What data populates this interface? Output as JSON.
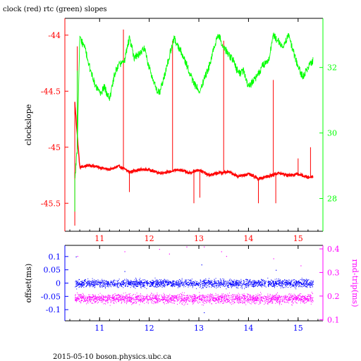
{
  "title": "clock (red) rtc (green) slopes",
  "footer": "2015-05-10 boson.physics.ubc.ca",
  "colors": {
    "axis_black": "#000000",
    "clock_red": "#ff0000",
    "rtc_green": "#00ff00",
    "offset_blue": "#0000ff",
    "rndtrip_magenta": "#ff00ff"
  },
  "chart_data": [
    {
      "type": "line",
      "title": "clock (red) rtc (green) slopes",
      "xlabel": "",
      "ylabel": "clockslope",
      "y2label": "",
      "xlim": [
        10.3,
        15.5
      ],
      "ylim": [
        -45.75,
        -43.85
      ],
      "y2lim": [
        27.0,
        33.5
      ],
      "xticks": [
        11,
        12,
        13,
        14,
        15
      ],
      "yticks": [
        -44,
        -44.5,
        -45,
        -45.5
      ],
      "ytick_labels": [
        "-44",
        "-44.5",
        "-45",
        "-45.5"
      ],
      "y2ticks": [
        28,
        30,
        32
      ],
      "y2tick_labels": [
        "28",
        "30",
        "32"
      ],
      "series": [
        {
          "name": "clock",
          "axis": "left",
          "color": "#ff0000",
          "x": [
            10.5,
            10.6,
            10.8,
            11.0,
            11.2,
            11.4,
            11.6,
            11.8,
            12.0,
            12.2,
            12.4,
            12.6,
            12.8,
            13.0,
            13.2,
            13.4,
            13.6,
            13.8,
            14.0,
            14.2,
            14.4,
            14.6,
            14.8,
            15.0,
            15.2,
            15.3
          ],
          "y": [
            -44.6,
            -45.18,
            -45.16,
            -45.18,
            -45.2,
            -45.17,
            -45.22,
            -45.2,
            -45.2,
            -45.23,
            -45.22,
            -45.2,
            -45.23,
            -45.2,
            -45.25,
            -45.23,
            -45.22,
            -45.26,
            -45.24,
            -45.28,
            -45.26,
            -45.23,
            -45.25,
            -45.24,
            -45.27,
            -45.26
          ],
          "spikes": [
            {
              "x": 10.5,
              "y": -45.7
            },
            {
              "x": 10.55,
              "y": -44.1
            },
            {
              "x": 11.48,
              "y": -43.95
            },
            {
              "x": 11.6,
              "y": -45.4
            },
            {
              "x": 12.47,
              "y": -44.05
            },
            {
              "x": 12.9,
              "y": -45.5
            },
            {
              "x": 13.02,
              "y": -45.45
            },
            {
              "x": 13.5,
              "y": -44.05
            },
            {
              "x": 14.2,
              "y": -45.5
            },
            {
              "x": 14.5,
              "y": -44.4
            },
            {
              "x": 14.55,
              "y": -45.5
            },
            {
              "x": 15.0,
              "y": -45.1
            },
            {
              "x": 15.25,
              "y": -45.0
            }
          ]
        },
        {
          "name": "rtc",
          "axis": "right",
          "color": "#00ff00",
          "x": [
            10.5,
            10.55,
            10.6,
            10.7,
            10.8,
            10.9,
            11.0,
            11.1,
            11.2,
            11.3,
            11.4,
            11.5,
            11.6,
            11.7,
            11.8,
            11.9,
            12.0,
            12.1,
            12.2,
            12.3,
            12.4,
            12.5,
            12.6,
            12.7,
            12.8,
            12.9,
            13.0,
            13.1,
            13.2,
            13.3,
            13.4,
            13.5,
            13.6,
            13.7,
            13.8,
            13.9,
            14.0,
            14.1,
            14.2,
            14.3,
            14.4,
            14.5,
            14.6,
            14.7,
            14.8,
            14.9,
            15.0,
            15.1,
            15.2,
            15.3
          ],
          "y": [
            28.6,
            29.5,
            32.9,
            32.6,
            32.0,
            31.5,
            31.2,
            31.4,
            31.0,
            31.8,
            32.1,
            32.2,
            32.9,
            32.3,
            32.4,
            32.6,
            32.0,
            31.5,
            31.2,
            31.7,
            32.3,
            32.9,
            32.6,
            32.3,
            31.9,
            31.5,
            31.3,
            31.6,
            32.0,
            32.6,
            33.0,
            32.6,
            32.4,
            32.2,
            31.8,
            31.9,
            31.4,
            31.6,
            31.8,
            32.1,
            32.2,
            33.0,
            32.8,
            32.6,
            33.0,
            32.5,
            32.0,
            31.7,
            32.0,
            32.2
          ],
          "spikes": [
            {
              "x": 10.5,
              "y": 27.6
            },
            {
              "x": 10.55,
              "y": 31.9
            }
          ]
        }
      ]
    },
    {
      "type": "scatter",
      "title": "",
      "xlabel": "",
      "ylabel": "offset(ms)",
      "y2label": "rnd-trip(ms)",
      "xlim": [
        10.3,
        15.5
      ],
      "ylim": [
        -0.142,
        0.142
      ],
      "y2lim": [
        0.095,
        0.415
      ],
      "xticks": [
        11,
        12,
        13,
        14,
        15
      ],
      "yticks": [
        0.1,
        0.05,
        0,
        -0.05,
        -0.1
      ],
      "ytick_labels": [
        "0.1",
        "0.05",
        "0",
        "-0.05",
        "-0.1"
      ],
      "y2ticks": [
        0.4,
        0.3,
        0.2,
        0.1
      ],
      "y2tick_labels": [
        "0.4",
        "0.3",
        "0.2",
        "0.1"
      ],
      "series": [
        {
          "name": "offset",
          "axis": "left",
          "color": "#0000ff",
          "x_range": [
            10.5,
            15.3
          ],
          "y_center": 0.0,
          "y_spread": 0.022,
          "outliers": [
            {
              "x": 10.52,
              "y": 0.1
            },
            {
              "x": 11.5,
              "y": 0.045
            },
            {
              "x": 13.05,
              "y": 0.07
            },
            {
              "x": 13.1,
              "y": -0.11
            },
            {
              "x": 14.55,
              "y": 0.05
            }
          ]
        },
        {
          "name": "rnd-trip",
          "axis": "right",
          "color": "#ff00ff",
          "x_range": [
            10.5,
            15.3
          ],
          "y_center": 0.19,
          "y_spread": 0.03,
          "outliers": [
            {
              "x": 10.55,
              "y": 0.37
            },
            {
              "x": 11.5,
              "y": 0.39
            },
            {
              "x": 12.2,
              "y": 0.4
            },
            {
              "x": 12.4,
              "y": 0.38
            },
            {
              "x": 12.75,
              "y": 0.41
            },
            {
              "x": 13.1,
              "y": 0.41
            },
            {
              "x": 13.45,
              "y": 0.39
            },
            {
              "x": 13.55,
              "y": 0.37
            },
            {
              "x": 14.5,
              "y": 0.36
            },
            {
              "x": 15.05,
              "y": 0.33
            }
          ]
        }
      ]
    }
  ]
}
